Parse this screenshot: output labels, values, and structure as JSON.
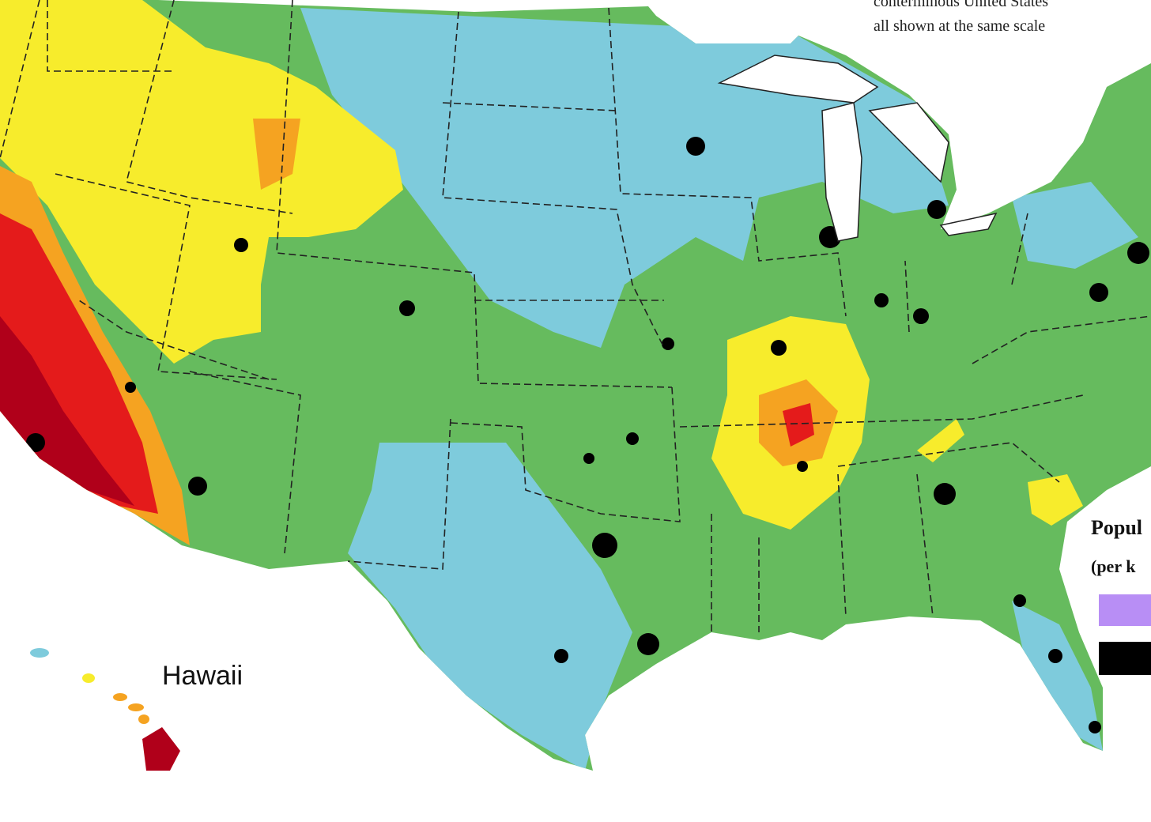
{
  "header_note": {
    "lines": [
      "conterminous United States",
      "all shown at the same scale"
    ]
  },
  "labels": {
    "hawaii": "Hawaii"
  },
  "legend": {
    "title": "Popul",
    "subtitle": "(per k"
  }
}
